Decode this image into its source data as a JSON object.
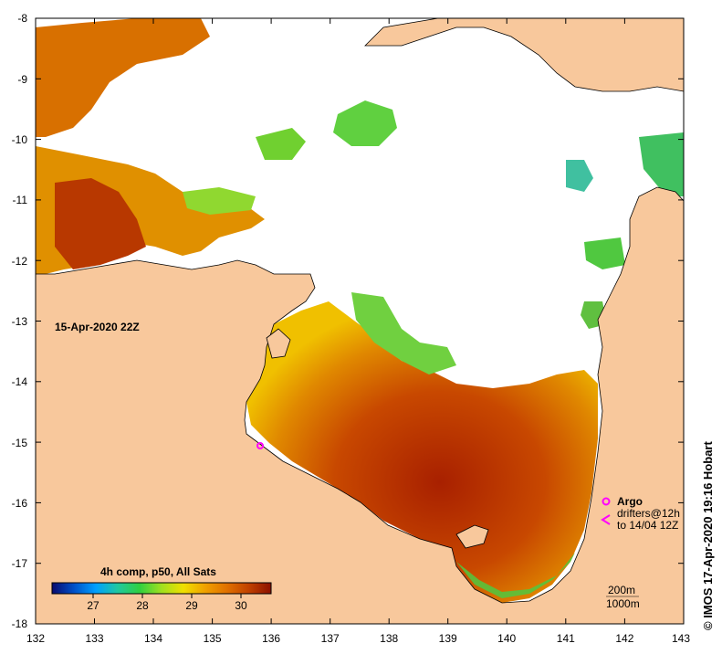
{
  "map": {
    "timestamp_label": "15-Apr-2020 22Z",
    "credit": "© IMOS 17-Apr-2020 19:16 Hobart",
    "x_ticks": [
      "132",
      "133",
      "134",
      "135",
      "136",
      "137",
      "138",
      "139",
      "140",
      "141",
      "142",
      "143"
    ],
    "y_ticks": [
      "-8",
      "-9",
      "-10",
      "-11",
      "-12",
      "-13",
      "-14",
      "-15",
      "-16",
      "-17",
      "-18"
    ],
    "colorbar": {
      "title": "4h comp, p50, All Sats",
      "tick_labels": [
        "27",
        "28",
        "29",
        "30"
      ],
      "colors": [
        "#0a0a6e",
        "#0050c8",
        "#00a0ff",
        "#20c8a0",
        "#30d040",
        "#a0e020",
        "#f0e000",
        "#f0a000",
        "#e07000",
        "#c04000",
        "#8c1000"
      ]
    },
    "legend": {
      "argo_label": "Argo",
      "drifters_label": "drifters@12h",
      "drifters_sub": "to 14/04 12Z",
      "argo_color": "#ff00ff",
      "drifter_color": "#ff00ff"
    },
    "contours": {
      "label_200m": "200m",
      "label_1000m": "1000m"
    },
    "colors": {
      "land": "#f8c89c",
      "ocean_nodata": "#ffffff",
      "sst_hot": "#b03000",
      "sst_warm": "#e07800",
      "sst_mid": "#f0c000",
      "sst_cool": "#30c040"
    }
  }
}
